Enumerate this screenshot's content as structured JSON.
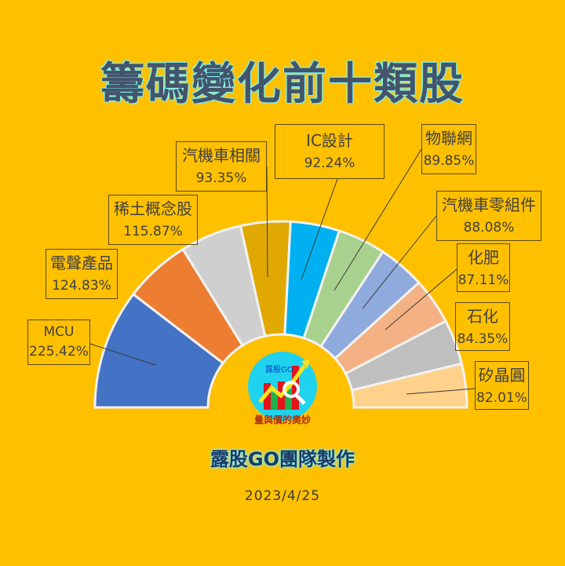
{
  "header": {
    "title": "籌碼變化前十類股"
  },
  "footer": {
    "credit": "露股GO團隊製作",
    "date": "2023/4/25"
  },
  "logo": {
    "brand": "露股GO",
    "tagline": "量與價的奧妙"
  },
  "chart_data": {
    "type": "pie",
    "subtype": "half-donut",
    "title": "籌碼變化前十類股",
    "categories": [
      "MCU",
      "電聲產品",
      "稀土概念股",
      "汽機車相關",
      "IC設計",
      "物聯網",
      "汽機車零組件",
      "化肥",
      "石化",
      "矽晶圓"
    ],
    "values": [
      225.42,
      124.83,
      115.87,
      93.35,
      92.24,
      89.85,
      88.08,
      87.11,
      84.35,
      82.01
    ],
    "labels": [
      "225.42%",
      "124.83%",
      "115.87%",
      "93.35%",
      "92.24%",
      "89.85%",
      "88.08%",
      "87.11%",
      "84.35%",
      "82.01%"
    ],
    "colors": [
      "#4472C4",
      "#ED7D31",
      "#CFCFCF",
      "#E0A800",
      "#00B0F0",
      "#A9D18E",
      "#8FAADC",
      "#F4B183",
      "#BFBFBF",
      "#FFD18A"
    ],
    "unit": "%",
    "legend": "data labels with leader lines"
  }
}
